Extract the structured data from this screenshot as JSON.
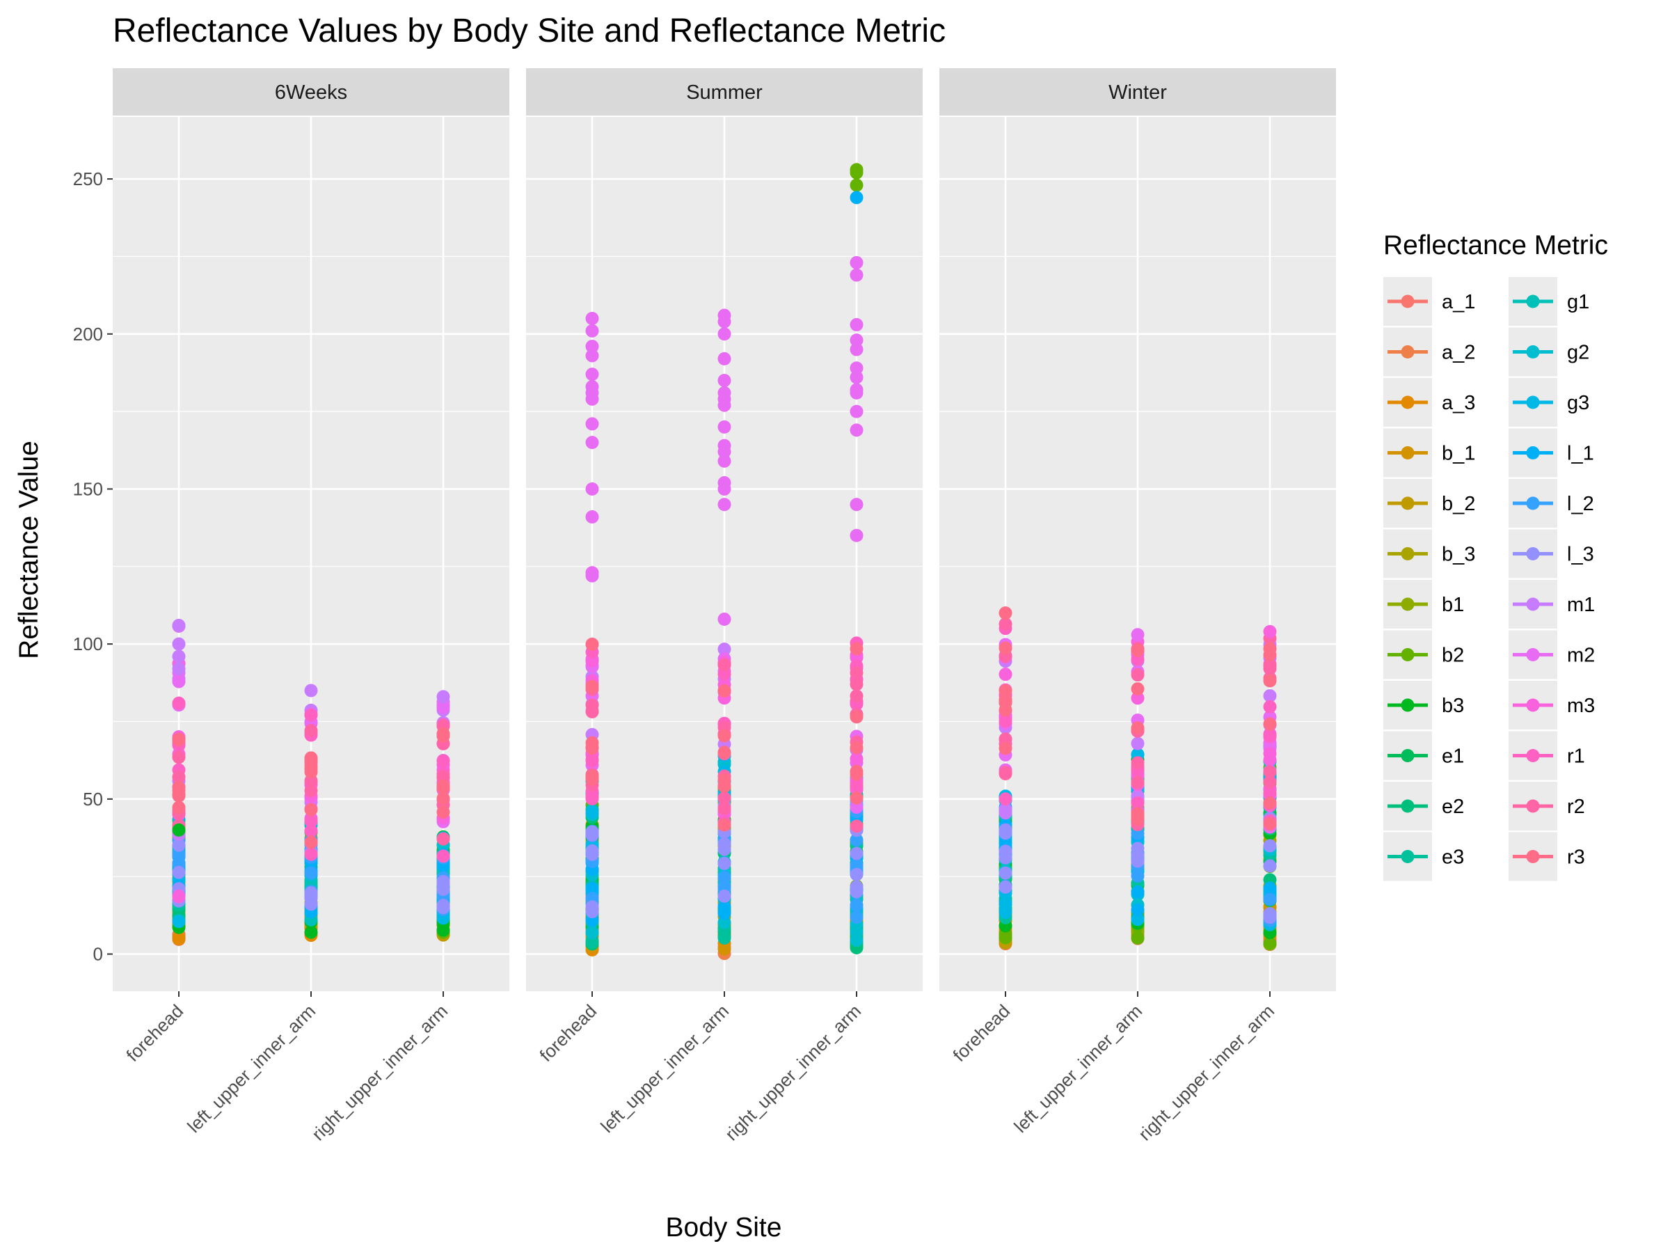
{
  "chart_data": {
    "type": "scatter",
    "title": "Reflectance Values by Body Site and Reflectance Metric",
    "xlabel": "Body Site",
    "ylabel": "Reflectance Value",
    "categories": [
      "forehead",
      "left_upper_inner_arm",
      "right_upper_inner_arm"
    ],
    "ylim": [
      -12,
      270
    ],
    "yticks": [
      0,
      50,
      100,
      150,
      200,
      250
    ],
    "grid": true,
    "legend": {
      "title": "Reflectance Metric",
      "position": "right",
      "columns": 2,
      "entries": [
        {
          "name": "a_1",
          "color": "#F8766D"
        },
        {
          "name": "a_2",
          "color": "#EF7F49"
        },
        {
          "name": "a_3",
          "color": "#E38900"
        },
        {
          "name": "b_1",
          "color": "#D39200"
        },
        {
          "name": "b_2",
          "color": "#C09B00"
        },
        {
          "name": "b_3",
          "color": "#A9A400"
        },
        {
          "name": "b1",
          "color": "#8EAB00"
        },
        {
          "name": "b2",
          "color": "#64B200"
        },
        {
          "name": "b3",
          "color": "#00B81F"
        },
        {
          "name": "e1",
          "color": "#00BC59"
        },
        {
          "name": "e2",
          "color": "#00BF7D"
        },
        {
          "name": "e3",
          "color": "#00C19C"
        },
        {
          "name": "g1",
          "color": "#00C0B8"
        },
        {
          "name": "g2",
          "color": "#00BDD0"
        },
        {
          "name": "g3",
          "color": "#00B8E5"
        },
        {
          "name": "l_1",
          "color": "#00B0F6"
        },
        {
          "name": "l_2",
          "color": "#35A2FF"
        },
        {
          "name": "l_3",
          "color": "#9590FF"
        },
        {
          "name": "m1",
          "color": "#C77CFF"
        },
        {
          "name": "m2",
          "color": "#E76BF3"
        },
        {
          "name": "m3",
          "color": "#F962DD"
        },
        {
          "name": "r1",
          "color": "#FF61C3"
        },
        {
          "name": "r2",
          "color": "#FF65A6"
        },
        {
          "name": "r3",
          "color": "#FF6C87"
        }
      ]
    },
    "facets": [
      {
        "name": "6Weeks",
        "ranges": [
          {
            "site": "forehead",
            "bands": {
              "a": [
                3,
                13
              ],
              "b": [
                5,
                44
              ],
              "e": [
                12,
                30
              ],
              "g": [
                10,
                45
              ],
              "l": [
                15,
                40
              ],
              "m": [
                18,
                106
              ],
              "r": [
                35,
                85
              ]
            }
          },
          {
            "site": "left_upper_inner_arm",
            "bands": {
              "a": [
                6,
                13
              ],
              "b": [
                6,
                40
              ],
              "e": [
                12,
                35
              ],
              "g": [
                10,
                43
              ],
              "l": [
                13,
                38
              ],
              "m": [
                40,
                85
              ],
              "r": [
                30,
                82
              ]
            }
          },
          {
            "site": "right_upper_inner_arm",
            "bands": {
              "a": [
                6,
                14
              ],
              "b": [
                6,
                38
              ],
              "e": [
                12,
                34
              ],
              "g": [
                10,
                40
              ],
              "l": [
                14,
                36
              ],
              "m": [
                40,
                83
              ],
              "r": [
                30,
                80
              ]
            }
          }
        ],
        "highlights": [
          {
            "site": "forehead",
            "metric": "m1",
            "values": [
              106,
              100,
              96,
              92
            ]
          },
          {
            "site": "forehead",
            "metric": "b3",
            "values": [
              40
            ]
          },
          {
            "site": "left_upper_inner_arm",
            "metric": "m1",
            "values": [
              85
            ]
          },
          {
            "site": "right_upper_inner_arm",
            "metric": "m1",
            "values": [
              83
            ]
          }
        ]
      },
      {
        "name": "Summer",
        "ranges": [
          {
            "site": "forehead",
            "bands": {
              "a": [
                0,
                20
              ],
              "b": [
                2,
                50
              ],
              "e": [
                3,
                55
              ],
              "g": [
                3,
                57
              ],
              "l": [
                10,
                45
              ],
              "m": [
                50,
                100
              ],
              "r": [
                40,
                104
              ]
            }
          },
          {
            "site": "left_upper_inner_arm",
            "bands": {
              "a": [
                0,
                20
              ],
              "b": [
                1,
                55
              ],
              "e": [
                2,
                60
              ],
              "g": [
                3,
                66
              ],
              "l": [
                10,
                50
              ],
              "m": [
                45,
                100
              ],
              "r": [
                40,
                103
              ]
            }
          },
          {
            "site": "right_upper_inner_arm",
            "bands": {
              "a": [
                0,
                20
              ],
              "b": [
                2,
                60
              ],
              "e": [
                2,
                60
              ],
              "g": [
                3,
                62
              ],
              "l": [
                10,
                50
              ],
              "m": [
                45,
                100
              ],
              "r": [
                40,
                103
              ]
            }
          }
        ],
        "highlights": [
          {
            "site": "forehead",
            "metric": "m2",
            "values": [
              205,
              201,
              196,
              193,
              187,
              183,
              181,
              179,
              171,
              165,
              150,
              141,
              123,
              122
            ]
          },
          {
            "site": "left_upper_inner_arm",
            "metric": "m2",
            "values": [
              206,
              204,
              200,
              192,
              185,
              181,
              179,
              177,
              170,
              164,
              162,
              159,
              152,
              150,
              145,
              108
            ]
          },
          {
            "site": "right_upper_inner_arm",
            "metric": "m2",
            "values": [
              223,
              219,
              203,
              198,
              195,
              189,
              186,
              182,
              181,
              175,
              169,
              145,
              135
            ]
          },
          {
            "site": "right_upper_inner_arm",
            "metric": "b2",
            "values": [
              253,
              252,
              248
            ]
          },
          {
            "site": "right_upper_inner_arm",
            "metric": "l_1",
            "values": [
              244
            ]
          }
        ]
      },
      {
        "name": "Winter",
        "ranges": [
          {
            "site": "forehead",
            "bands": {
              "a": [
                3,
                18
              ],
              "b": [
                3,
                45
              ],
              "e": [
                10,
                48
              ],
              "g": [
                12,
                52
              ],
              "l": [
                20,
                50
              ],
              "m": [
                45,
                105
              ],
              "r": [
                45,
                110
              ]
            }
          },
          {
            "site": "left_upper_inner_arm",
            "bands": {
              "a": [
                5,
                15
              ],
              "b": [
                5,
                65
              ],
              "e": [
                8,
                60
              ],
              "g": [
                8,
                72
              ],
              "l": [
                10,
                60
              ],
              "m": [
                40,
                103
              ],
              "r": [
                40,
                101
              ]
            }
          },
          {
            "site": "right_upper_inner_arm",
            "bands": {
              "a": [
                3,
                16
              ],
              "b": [
                3,
                62
              ],
              "e": [
                8,
                60
              ],
              "g": [
                8,
                73
              ],
              "l": [
                10,
                62
              ],
              "m": [
                40,
                104
              ],
              "r": [
                40,
                103
              ]
            }
          }
        ],
        "highlights": [
          {
            "site": "forehead",
            "metric": "r3",
            "values": [
              110
            ]
          },
          {
            "site": "left_upper_inner_arm",
            "metric": "m2",
            "values": [
              103
            ]
          },
          {
            "site": "right_upper_inner_arm",
            "metric": "m3",
            "values": [
              104
            ]
          }
        ]
      }
    ]
  }
}
